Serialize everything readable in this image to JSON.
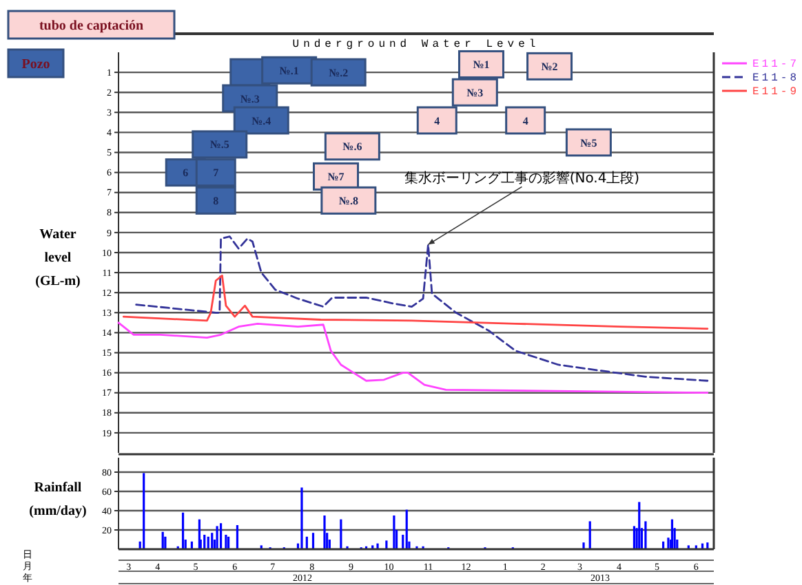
{
  "chart_data": [
    {
      "type": "line",
      "title": "Underground Water Level",
      "ylabel": "Water level (GL-m)",
      "xlim": [
        "2012-03-16",
        "2013-06-30"
      ],
      "ylim": [
        20,
        0
      ],
      "yticks": [
        1,
        2,
        3,
        4,
        5,
        6,
        7,
        8,
        9,
        10,
        11,
        12,
        13,
        14,
        15,
        16,
        17,
        18,
        19
      ],
      "grid": "y",
      "legend": "right",
      "tick_labels": "y",
      "series": [
        {
          "name": "E11-7",
          "color": "#ff44ff",
          "x": [
            "2012-03-16",
            "2012-03-28",
            "2012-04-18",
            "2012-05-25",
            "2012-06-05",
            "2012-06-19",
            "2012-07-04",
            "2012-08-05",
            "2012-08-25",
            "2012-08-31",
            "2012-09-08",
            "2012-09-28",
            "2012-10-12",
            "2012-10-27",
            "2012-10-31",
            "2012-11-13",
            "2012-11-30",
            "2013-06-25"
          ],
          "values": [
            13.5,
            14.1,
            14.1,
            14.25,
            14.1,
            13.7,
            13.55,
            13.7,
            13.6,
            14.9,
            15.6,
            16.4,
            16.35,
            16.0,
            16.0,
            16.6,
            16.85,
            17.0
          ]
        },
        {
          "name": "E11-8",
          "color": "#333399",
          "line_style": "dashed",
          "x": [
            "2012-03-30",
            "2012-06-01",
            "2012-06-04",
            "2012-06-05",
            "2012-06-12",
            "2012-06-19",
            "2012-06-26",
            "2012-06-30",
            "2012-07-07",
            "2012-07-18",
            "2012-08-05",
            "2012-08-25",
            "2012-09-01",
            "2012-09-28",
            "2012-10-20",
            "2012-11-03",
            "2012-11-12",
            "2012-11-16",
            "2012-11-19",
            "2012-12-08",
            "2013-01-03",
            "2013-01-24",
            "2013-02-27",
            "2013-04-02",
            "2013-05-07",
            "2013-06-25"
          ],
          "values": [
            12.6,
            13.0,
            13.0,
            9.3,
            9.2,
            9.8,
            9.3,
            9.45,
            11.0,
            11.85,
            12.3,
            12.7,
            12.25,
            12.25,
            12.55,
            12.7,
            12.3,
            9.6,
            12.05,
            13.0,
            13.9,
            14.9,
            15.6,
            15.9,
            16.2,
            16.4
          ]
        },
        {
          "name": "E11-9",
          "color": "#ff4444",
          "x": [
            "2012-03-20",
            "2012-05-25",
            "2012-05-28",
            "2012-06-01",
            "2012-06-06",
            "2012-06-09",
            "2012-06-16",
            "2012-06-24",
            "2012-06-30",
            "2012-08-23",
            "2012-11-03",
            "2013-01-24",
            "2013-04-17",
            "2013-06-25"
          ],
          "values": [
            13.2,
            13.4,
            13.0,
            11.4,
            11.15,
            12.65,
            13.2,
            12.65,
            13.2,
            13.35,
            13.4,
            13.55,
            13.7,
            13.8
          ]
        },
        {
          "type": "scatter",
          "marker": "square",
          "color": "#fbd5d5",
          "name": "№.6",
          "x": [
            "2012-09-17"
          ],
          "values": [
            4.7
          ]
        },
        {
          "type": "scatter",
          "marker": "square",
          "color": "#fbd5d5",
          "name": "№7",
          "x": [
            "2012-09-04"
          ],
          "values": [
            6.2
          ]
        },
        {
          "type": "scatter",
          "marker": "square",
          "color": "#fbd5d5",
          "name": "№.8",
          "x": [
            "2012-09-14"
          ],
          "values": [
            7.4
          ]
        },
        {
          "type": "scatter",
          "marker": "square",
          "color": "#fbd5d5",
          "name": "№1",
          "x": [
            "2012-12-28"
          ],
          "values": [
            0.6
          ]
        },
        {
          "type": "scatter",
          "marker": "square",
          "color": "#fbd5d5",
          "name": "№2",
          "x": [
            "2013-02-20"
          ],
          "values": [
            0.7
          ]
        },
        {
          "type": "scatter",
          "marker": "square",
          "color": "#fbd5d5",
          "name": "№3",
          "x": [
            "2012-12-23"
          ],
          "values": [
            2.0
          ]
        },
        {
          "type": "scatter",
          "marker": "square",
          "color": "#fbd5d5",
          "name": "4",
          "x": [
            "2012-11-23"
          ],
          "values": [
            3.4
          ]
        },
        {
          "type": "scatter",
          "marker": "square",
          "color": "#fbd5d5",
          "name": "4",
          "x": [
            "2013-02-01"
          ],
          "values": [
            3.4
          ]
        },
        {
          "type": "scatter",
          "marker": "square",
          "color": "#fbd5d5",
          "name": "№5",
          "x": [
            "2013-03-23"
          ],
          "values": [
            4.5
          ]
        },
        {
          "type": "scatter",
          "marker": "square",
          "color": "#3c64a8",
          "x": [
            "2012-06-28"
          ],
          "values": [
            1.0
          ]
        },
        {
          "type": "scatter",
          "marker": "square",
          "color": "#3c64a8",
          "name": "№.1",
          "x": [
            "2012-07-29"
          ],
          "values": [
            0.9
          ]
        },
        {
          "type": "scatter",
          "marker": "square",
          "color": "#3c64a8",
          "name": "№.2",
          "x": [
            "2012-09-06"
          ],
          "values": [
            1.0
          ]
        },
        {
          "type": "scatter",
          "marker": "square",
          "color": "#3c64a8",
          "name": "№.3",
          "x": [
            "2012-06-28"
          ],
          "values": [
            2.3
          ]
        },
        {
          "type": "scatter",
          "marker": "square",
          "color": "#3c64a8",
          "name": "№.4",
          "x": [
            "2012-07-07"
          ],
          "values": [
            3.4
          ]
        },
        {
          "type": "scatter",
          "marker": "square",
          "color": "#3c64a8",
          "name": "№.5",
          "x": [
            "2012-06-04"
          ],
          "values": [
            4.6
          ]
        },
        {
          "type": "scatter",
          "marker": "square",
          "color": "#3c64a8",
          "name": "6",
          "x": [
            "2012-05-08"
          ],
          "values": [
            6.0
          ]
        },
        {
          "type": "scatter",
          "marker": "square",
          "color": "#3c64a8",
          "name": "7",
          "x": [
            "2012-06-01"
          ],
          "values": [
            6.0
          ]
        },
        {
          "type": "scatter",
          "marker": "square",
          "color": "#3c64a8",
          "name": "8",
          "x": [
            "2012-06-01"
          ],
          "values": [
            7.4
          ]
        }
      ],
      "annotations": [
        "tubo de captación",
        "Pozo",
        {
          "text": "集水ボーリング工事の影響(No.4上段)",
          "x": "2012-11-16",
          "y": 9.6
        }
      ]
    },
    {
      "type": "bar",
      "ylabel": "Rainfall (mm/day)",
      "xlim": [
        "2012-03-16",
        "2013-06-30"
      ],
      "ylim": [
        0,
        95
      ],
      "yticks": [
        20,
        40,
        60,
        80
      ],
      "grid": "y",
      "color": "#0000ff",
      "xticks": [
        {
          "value": "2012-03-24",
          "label": "3"
        },
        {
          "value": "2012-04-16",
          "label": "4"
        },
        {
          "value": "2012-05-16",
          "label": "5"
        },
        {
          "value": "2012-06-16",
          "label": "6"
        },
        {
          "value": "2012-07-16",
          "label": "7"
        },
        {
          "value": "2012-08-16",
          "label": "8"
        },
        {
          "value": "2012-09-16",
          "label": "9"
        },
        {
          "value": "2012-10-16",
          "label": "10"
        },
        {
          "value": "2012-11-16",
          "label": "11"
        },
        {
          "value": "2012-12-16",
          "label": "12"
        },
        {
          "value": "2013-01-16",
          "label": "1"
        },
        {
          "value": "2013-02-15",
          "label": "2"
        },
        {
          "value": "2013-03-16",
          "label": "3"
        },
        {
          "value": "2013-04-16",
          "label": "4"
        },
        {
          "value": "2013-05-16",
          "label": "5"
        },
        {
          "value": "2013-06-16",
          "label": "6"
        }
      ],
      "x": [
        "2012-04-02",
        "2012-04-05",
        "2012-04-20",
        "2012-04-22",
        "2012-05-02",
        "2012-05-06",
        "2012-05-08",
        "2012-05-13",
        "2012-05-19",
        "2012-05-20",
        "2012-05-23",
        "2012-05-26",
        "2012-05-29",
        "2012-05-31",
        "2012-06-02",
        "2012-06-05",
        "2012-06-09",
        "2012-06-11",
        "2012-06-18",
        "2012-07-07",
        "2012-07-14",
        "2012-07-25",
        "2012-08-05",
        "2012-08-08",
        "2012-08-12",
        "2012-08-17",
        "2012-08-26",
        "2012-08-28",
        "2012-08-30",
        "2012-09-08",
        "2012-09-13",
        "2012-09-24",
        "2012-09-28",
        "2012-10-03",
        "2012-10-07",
        "2012-10-14",
        "2012-10-20",
        "2012-10-22",
        "2012-10-27",
        "2012-10-30",
        "2012-11-01",
        "2012-11-03",
        "2012-11-07",
        "2012-11-12",
        "2012-12-02",
        "2012-12-31",
        "2013-01-22",
        "2013-03-19",
        "2013-03-24",
        "2013-04-28",
        "2013-04-30",
        "2013-05-02",
        "2013-05-04",
        "2013-05-07",
        "2013-05-21",
        "2013-05-25",
        "2013-05-27",
        "2013-05-28",
        "2013-05-30",
        "2013-06-01",
        "2013-06-10",
        "2013-06-16",
        "2013-06-21",
        "2013-06-25"
      ],
      "values": [
        8,
        79,
        18,
        13,
        3,
        38,
        10,
        8,
        31,
        10,
        15,
        13,
        17,
        10,
        24,
        27,
        15,
        13,
        25,
        4,
        2,
        2,
        6,
        64,
        13,
        17,
        35,
        17,
        10,
        31,
        3,
        2,
        3,
        4,
        6,
        9,
        35,
        20,
        15,
        41,
        8,
        null,
        3,
        3,
        2,
        2,
        2,
        7,
        29,
        24,
        22,
        49,
        22,
        29,
        8,
        12,
        10,
        31,
        22,
        10,
        4,
        4,
        6,
        7
      ],
      "annotations": [
        "日",
        "月",
        "年",
        "2012",
        "2013"
      ]
    }
  ]
}
